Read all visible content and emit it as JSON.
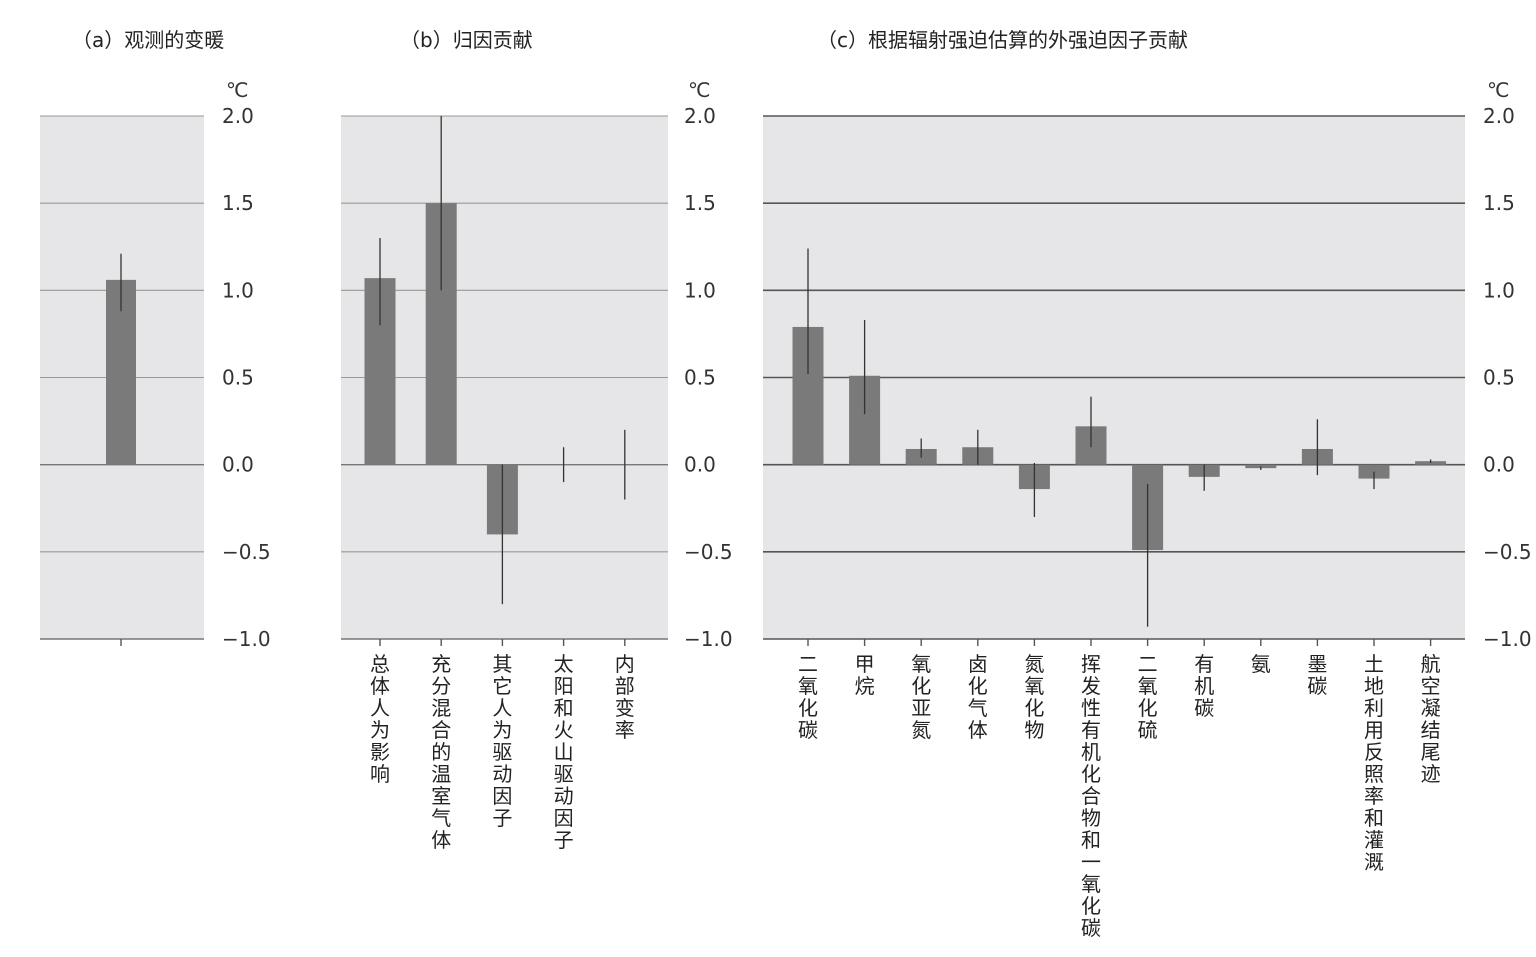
{
  "chart_data": [
    {
      "type": "bar",
      "title": "（a）观测的变暖",
      "unit": "℃",
      "ylim": [
        -1.0,
        2.0
      ],
      "yticks": [
        "2.0",
        "1.5",
        "1.0",
        "0.5",
        "0.0",
        "−0.5",
        "−1.0"
      ],
      "grid": true,
      "categories": [
        ""
      ],
      "values": [
        1.06
      ],
      "error_low": [
        0.88
      ],
      "error_high": [
        1.21
      ],
      "bar_color": "#7a7a7a",
      "background": "#e6e6e8"
    },
    {
      "type": "bar",
      "title": "（b）归因贡献",
      "unit": "℃",
      "ylim": [
        -1.0,
        2.0
      ],
      "yticks": [
        "2.0",
        "1.5",
        "1.0",
        "0.5",
        "0.0",
        "−0.5",
        "−1.0"
      ],
      "grid": true,
      "categories": [
        "总体人为影响",
        "充分混合的温室气体",
        "其它人为驱动因子",
        "太阳和火山驱动因子",
        "内部变率"
      ],
      "values": [
        1.07,
        1.5,
        -0.4,
        0.0,
        0.0
      ],
      "error_low": [
        0.8,
        1.0,
        -0.8,
        -0.1,
        -0.2
      ],
      "error_high": [
        1.3,
        2.0,
        0.0,
        0.1,
        0.2
      ],
      "bar_color": "#7a7a7a",
      "background": "#e6e6e8"
    },
    {
      "type": "bar",
      "title": "（c）根据辐射强迫估算的外强迫因子贡献",
      "unit": "℃",
      "ylim": [
        -1.0,
        2.0
      ],
      "yticks": [
        "2.0",
        "1.5",
        "1.0",
        "0.5",
        "0.0",
        "−0.5",
        "−1.0"
      ],
      "grid": true,
      "categories": [
        "二氧化碳",
        "甲烷",
        "氧化亚氮",
        "卤化气体",
        "氮氧化物",
        "挥发性有机化合物和一氧化碳",
        "二氧化硫",
        "有机碳",
        "氨",
        "墨碳",
        "土地利用反照率和灌溉",
        "航空凝结尾迹"
      ],
      "values": [
        0.79,
        0.51,
        0.09,
        0.1,
        -0.14,
        0.22,
        -0.49,
        -0.07,
        -0.02,
        0.09,
        -0.08,
        0.02
      ],
      "error_low": [
        0.52,
        0.29,
        0.04,
        0.0,
        -0.3,
        0.1,
        -0.93,
        -0.15,
        -0.03,
        -0.06,
        -0.14,
        0.01
      ],
      "error_high": [
        1.24,
        0.83,
        0.15,
        0.2,
        0.01,
        0.39,
        -0.11,
        0.0,
        -0.01,
        0.26,
        -0.04,
        0.03
      ],
      "bar_color": "#7a7a7a",
      "background": "#e6e6e8"
    }
  ]
}
